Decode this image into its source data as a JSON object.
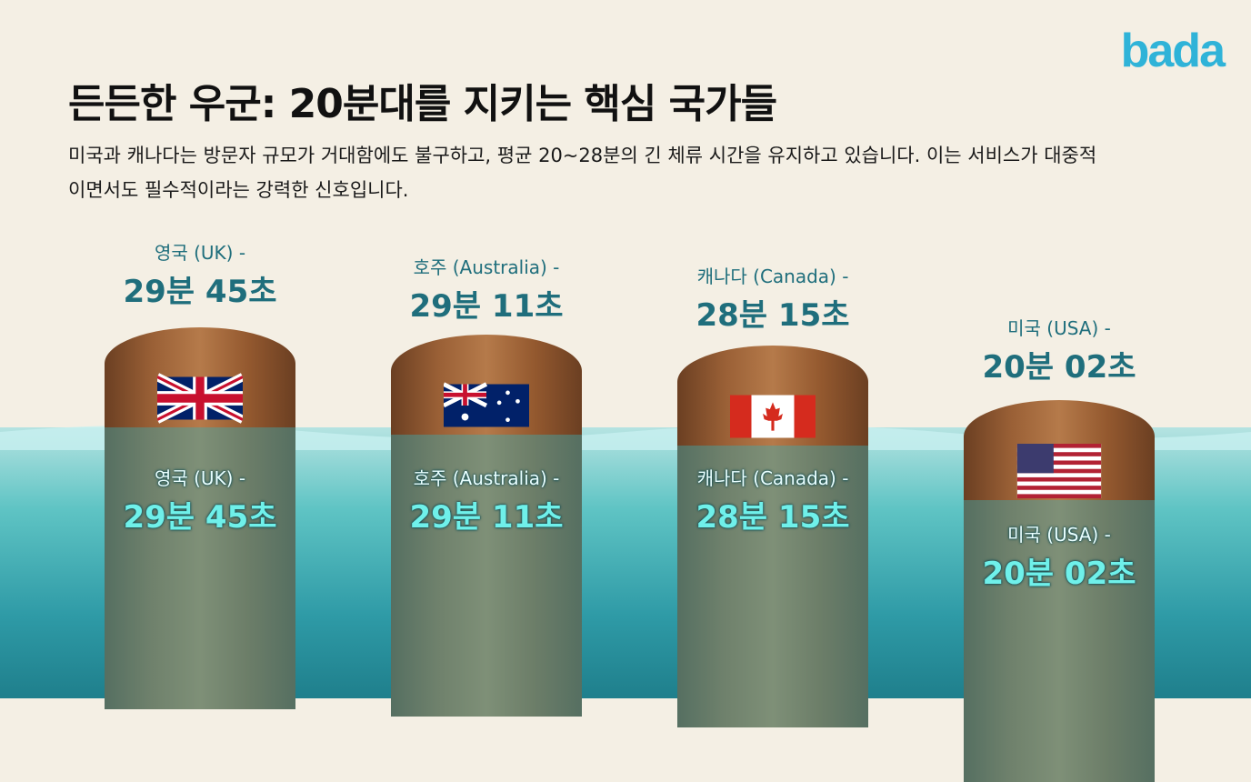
{
  "title": "든든한 우군: 20분대를 지키는 핵심 국가들",
  "subtitle": "미국과 캐나다는 방문자 규모가 거대함에도 불구하고, 평균 20~28분의 긴 체류 시간을 유지하고 있습니다. 이는 서비스가 대중적이면서도 필수적이라는 강력한 신호입니다.",
  "logo": "bada",
  "countries": [
    {
      "name": "영국 (UK) -",
      "value": "29분 45초",
      "flag": "uk-flag-icon"
    },
    {
      "name": "호주 (Australia) -",
      "value": "29분 11초",
      "flag": "australia-flag-icon"
    },
    {
      "name": "캐나다 (Canada) -",
      "value": "28분 15초",
      "flag": "canada-flag-icon"
    },
    {
      "name": "미국 (USA) -",
      "value": "20분 02초",
      "flag": "usa-flag-icon"
    }
  ],
  "colors": {
    "label": "#1f6e7c",
    "underwater_label": "#6ff0ea",
    "logo": "#2fb3d8"
  }
}
